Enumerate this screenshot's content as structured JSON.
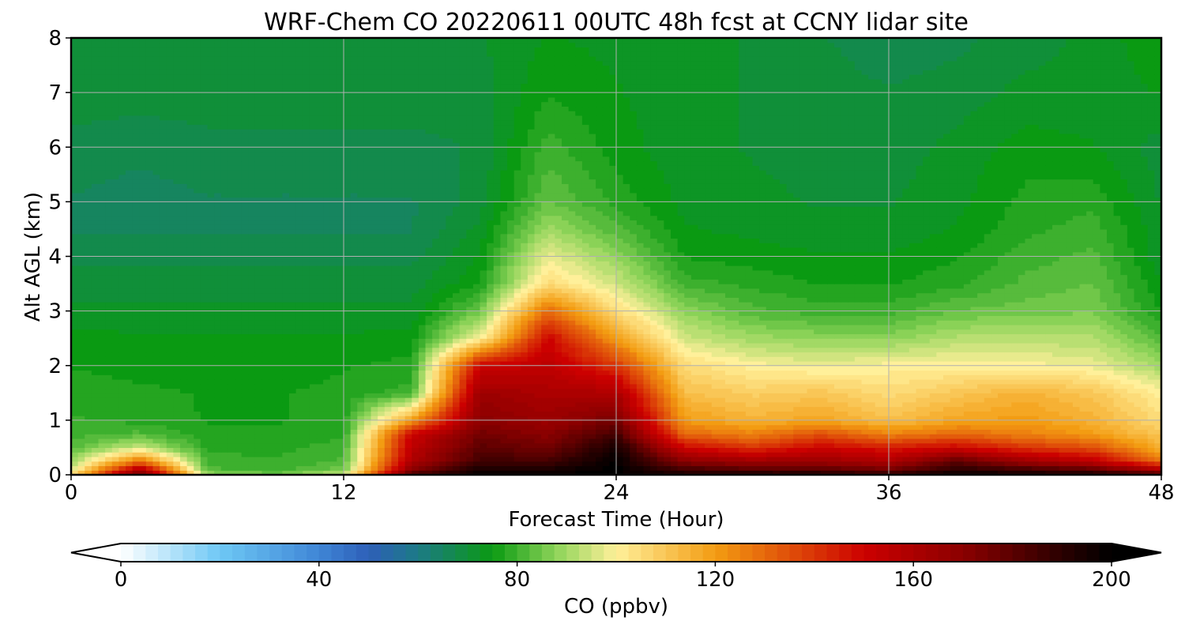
{
  "chart_data": {
    "type": "heatmap",
    "title": "WRF-Chem CO  20220611 00UTC 48h fcst at CCNY lidar site",
    "xlabel": "Forecast Time (Hour)",
    "ylabel": "Alt AGL (km)",
    "xlim": [
      0,
      48
    ],
    "ylim": [
      0,
      8
    ],
    "xticks": [
      0,
      12,
      24,
      36,
      48
    ],
    "yticks": [
      0,
      1,
      2,
      3,
      4,
      5,
      6,
      7,
      8
    ],
    "grid": true,
    "colorbar": {
      "label": "CO  (ppbv)",
      "min": 0,
      "max": 200,
      "ticks": [
        0,
        40,
        80,
        120,
        160,
        200
      ],
      "extend": "both",
      "stops": [
        {
          "v": 0,
          "c": "#ffffff"
        },
        {
          "v": 20,
          "c": "#6ec8f5"
        },
        {
          "v": 40,
          "c": "#3f86d6"
        },
        {
          "v": 50,
          "c": "#2e5fb8"
        },
        {
          "v": 60,
          "c": "#1c7a86"
        },
        {
          "v": 75,
          "c": "#0a9a12"
        },
        {
          "v": 88,
          "c": "#8fd45a"
        },
        {
          "v": 100,
          "c": "#fff09a"
        },
        {
          "v": 120,
          "c": "#f39c12"
        },
        {
          "v": 150,
          "c": "#cc0000"
        },
        {
          "v": 170,
          "c": "#8b0000"
        },
        {
          "v": 190,
          "c": "#2a0000"
        },
        {
          "v": 200,
          "c": "#000000"
        }
      ]
    },
    "x": [
      0,
      3,
      6,
      9,
      12,
      15,
      18,
      21,
      24,
      27,
      30,
      33,
      36,
      39,
      42,
      45,
      48
    ],
    "y": [
      0,
      0.1,
      0.25,
      0.5,
      0.75,
      1,
      1.5,
      2,
      2.5,
      3,
      3.5,
      4,
      4.5,
      5,
      6,
      7,
      8
    ],
    "z": [
      [
        105,
        180,
        90,
        85,
        95,
        185,
        200,
        200,
        200,
        195,
        195,
        195,
        190,
        200,
        198,
        195,
        185
      ],
      [
        95,
        160,
        82,
        80,
        85,
        170,
        195,
        195,
        200,
        185,
        180,
        180,
        175,
        190,
        185,
        180,
        160
      ],
      [
        88,
        130,
        80,
        79,
        82,
        160,
        185,
        185,
        200,
        170,
        165,
        165,
        160,
        180,
        165,
        155,
        130
      ],
      [
        82,
        95,
        78,
        78,
        80,
        155,
        180,
        175,
        195,
        150,
        140,
        150,
        145,
        150,
        140,
        135,
        115
      ],
      [
        80,
        82,
        77,
        77,
        78,
        150,
        175,
        170,
        185,
        130,
        125,
        135,
        125,
        130,
        125,
        120,
        110
      ],
      [
        79,
        78,
        76,
        76,
        77,
        120,
        170,
        165,
        175,
        120,
        115,
        118,
        112,
        118,
        120,
        115,
        105
      ],
      [
        78,
        77,
        76,
        76,
        77,
        80,
        165,
        160,
        160,
        112,
        108,
        110,
        105,
        110,
        115,
        110,
        100
      ],
      [
        76,
        75,
        75,
        75,
        76,
        77,
        150,
        155,
        140,
        105,
        100,
        98,
        100,
        100,
        100,
        98,
        90
      ],
      [
        75,
        74,
        74,
        74,
        74,
        75,
        100,
        150,
        120,
        95,
        90,
        88,
        88,
        92,
        92,
        92,
        82
      ],
      [
        72,
        72,
        72,
        72,
        72,
        72,
        85,
        130,
        105,
        88,
        82,
        80,
        80,
        84,
        85,
        86,
        76
      ],
      [
        70,
        70,
        70,
        70,
        70,
        70,
        76,
        105,
        95,
        80,
        78,
        76,
        76,
        78,
        82,
        84,
        74
      ],
      [
        68,
        68,
        68,
        68,
        68,
        68,
        74,
        98,
        88,
        76,
        75,
        74,
        74,
        76,
        80,
        82,
        72
      ],
      [
        66,
        66,
        66,
        66,
        66,
        66,
        72,
        90,
        82,
        74,
        73,
        72,
        72,
        74,
        78,
        80,
        72
      ],
      [
        66,
        65,
        66,
        66,
        66,
        66,
        70,
        84,
        78,
        73,
        72,
        71,
        71,
        73,
        77,
        78,
        71
      ],
      [
        68,
        67,
        68,
        68,
        68,
        68,
        69,
        80,
        75,
        72,
        71,
        70,
        70,
        72,
        75,
        74,
        70
      ],
      [
        70,
        70,
        70,
        70,
        70,
        70,
        70,
        76,
        74,
        72,
        71,
        70,
        69,
        70,
        72,
        72,
        74
      ],
      [
        71,
        71,
        71,
        71,
        71,
        71,
        71,
        74,
        73,
        72,
        71,
        69,
        67,
        68,
        70,
        72,
        76
      ]
    ]
  }
}
